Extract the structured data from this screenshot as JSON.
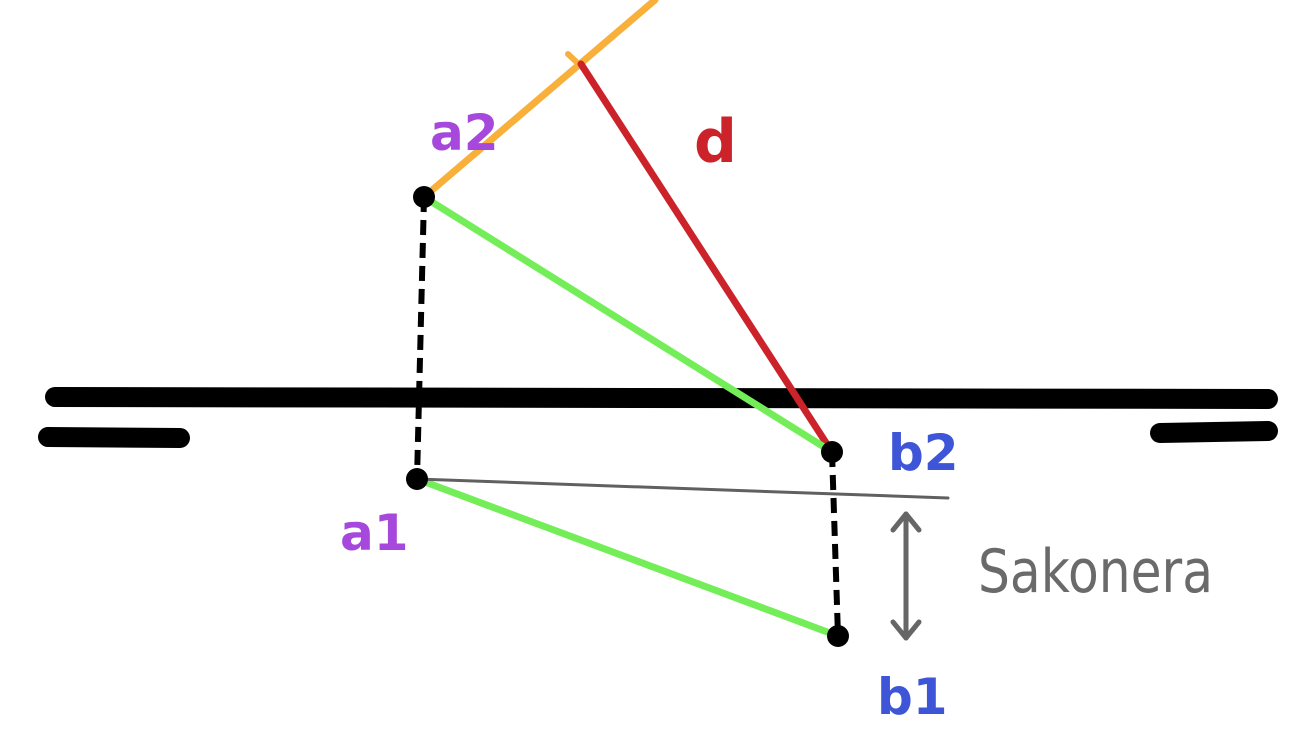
{
  "colors": {
    "background": "#ffffff",
    "plane": "#000000",
    "orange_line": "#f8b03a",
    "red_line": "#cc2229",
    "green_line": "#74ee58",
    "gray_line": "#606060",
    "purple_label": "#a648db",
    "blue_label": "#3d55d6",
    "red_label": "#cc2229",
    "gray_text": "#6a6a6a"
  },
  "labels": {
    "a2": "a2",
    "a1": "a1",
    "b2": "b2",
    "b1": "b1",
    "d": "d",
    "sakonera": "Sakonera"
  },
  "icons": {
    "double_arrow": "double-headed-arrow-icon"
  }
}
